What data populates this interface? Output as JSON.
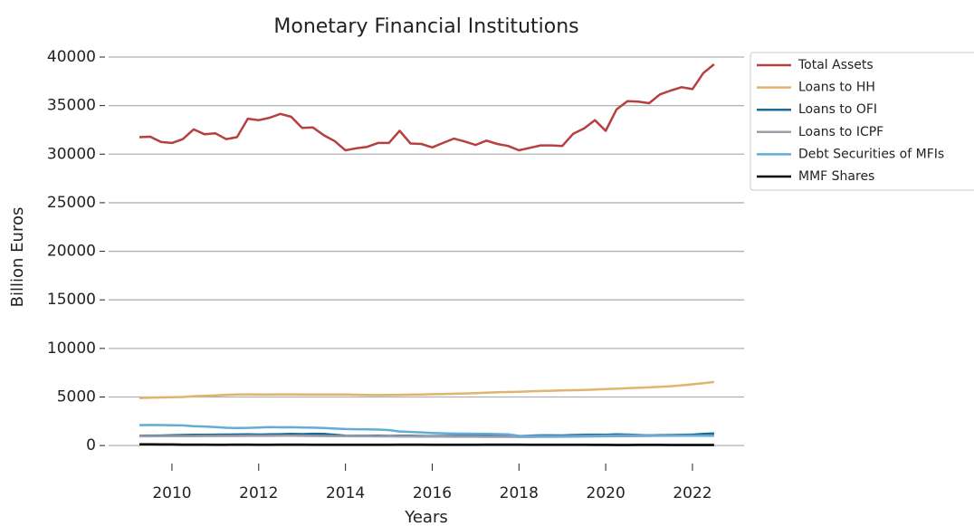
{
  "chart_data": {
    "type": "line",
    "title": "Monetary Financial Institutions",
    "x_label": "Years",
    "y_label": "Billion Euros",
    "x": [
      2009.25,
      2009.5,
      2009.75,
      2010,
      2010.25,
      2010.5,
      2010.75,
      2011,
      2011.25,
      2011.5,
      2011.75,
      2012,
      2012.25,
      2012.5,
      2012.75,
      2013,
      2013.25,
      2013.5,
      2013.75,
      2014,
      2014.25,
      2014.5,
      2014.75,
      2015,
      2015.25,
      2015.5,
      2015.75,
      2016,
      2016.25,
      2016.5,
      2016.75,
      2017,
      2017.25,
      2017.5,
      2017.75,
      2018,
      2018.25,
      2018.5,
      2018.75,
      2019,
      2019.25,
      2019.5,
      2019.75,
      2020,
      2020.25,
      2020.5,
      2020.75,
      2021,
      2021.25,
      2021.5,
      2021.75,
      2022,
      2022.25,
      2022.5
    ],
    "series": [
      {
        "name": "Total Assets",
        "color": "#b5403f",
        "values": [
          31750,
          31800,
          31250,
          31150,
          31550,
          32550,
          32050,
          32150,
          31550,
          31750,
          33650,
          33500,
          33750,
          34150,
          33850,
          32700,
          32750,
          31950,
          31350,
          30400,
          30600,
          30750,
          31150,
          31150,
          32400,
          31100,
          31050,
          30700,
          31150,
          31600,
          31300,
          30950,
          31400,
          31050,
          30850,
          30400,
          30650,
          30900,
          30900,
          30850,
          32100,
          32650,
          33500,
          32400,
          34600,
          35450,
          35400,
          35250,
          36150,
          36550,
          36900,
          36700,
          38350,
          39250
        ]
      },
      {
        "name": "Loans to HH",
        "color": "#e0b46e",
        "values": [
          4900,
          4920,
          4950,
          4970,
          5000,
          5080,
          5120,
          5170,
          5220,
          5260,
          5270,
          5260,
          5260,
          5270,
          5270,
          5260,
          5260,
          5260,
          5250,
          5250,
          5230,
          5210,
          5190,
          5200,
          5220,
          5240,
          5260,
          5290,
          5310,
          5330,
          5360,
          5400,
          5440,
          5480,
          5510,
          5540,
          5580,
          5610,
          5640,
          5670,
          5700,
          5730,
          5770,
          5810,
          5850,
          5900,
          5940,
          5990,
          6050,
          6110,
          6200,
          6300,
          6420,
          6550
        ]
      },
      {
        "name": "Loans to OFI",
        "color": "#1a6b96",
        "values": [
          1000,
          1020,
          1030,
          1060,
          1080,
          1110,
          1100,
          1120,
          1130,
          1140,
          1160,
          1130,
          1160,
          1170,
          1200,
          1180,
          1210,
          1200,
          1100,
          1020,
          1000,
          1000,
          1010,
          990,
          1000,
          1000,
          980,
          960,
          980,
          990,
          990,
          990,
          980,
          970,
          960,
          950,
          1010,
          1050,
          1050,
          1040,
          1080,
          1100,
          1120,
          1100,
          1150,
          1130,
          1080,
          1050,
          1080,
          1090,
          1100,
          1120,
          1200,
          1250
        ]
      },
      {
        "name": "Loans to ICPF",
        "color": "#a09ca8",
        "values": [
          950,
          950,
          960,
          960,
          970,
          970,
          980,
          980,
          990,
          990,
          1000,
          1000,
          1000,
          1010,
          1010,
          1000,
          990,
          980,
          970,
          960,
          950,
          950,
          940,
          940,
          930,
          930,
          920,
          920,
          920,
          910,
          910,
          910,
          900,
          900,
          900,
          890,
          890,
          900,
          900,
          910,
          920,
          930,
          940,
          950,
          960,
          970,
          980,
          990,
          1000,
          1000,
          1010,
          1010,
          1020,
          1020
        ]
      },
      {
        "name": "Debt Securities of MFIs",
        "color": "#63acd8",
        "values": [
          2100,
          2120,
          2110,
          2080,
          2070,
          2000,
          1960,
          1900,
          1830,
          1800,
          1820,
          1860,
          1900,
          1880,
          1890,
          1860,
          1840,
          1800,
          1750,
          1700,
          1680,
          1660,
          1640,
          1600,
          1450,
          1400,
          1350,
          1300,
          1260,
          1230,
          1220,
          1210,
          1200,
          1180,
          1150,
          1000,
          980,
          960,
          950,
          960,
          980,
          990,
          1000,
          1010,
          1030,
          1050,
          1040,
          1040,
          1050,
          1060,
          1040,
          1020,
          1010,
          1000
        ]
      },
      {
        "name": "MMF Shares",
        "color": "#000000",
        "values": [
          120,
          120,
          110,
          110,
          100,
          100,
          100,
          90,
          90,
          100,
          100,
          90,
          90,
          100,
          100,
          100,
          90,
          90,
          90,
          80,
          80,
          80,
          90,
          90,
          100,
          100,
          100,
          90,
          90,
          90,
          90,
          90,
          100,
          100,
          100,
          100,
          90,
          90,
          90,
          80,
          80,
          80,
          70,
          70,
          60,
          60,
          70,
          70,
          70,
          60,
          60,
          60,
          60,
          60
        ]
      }
    ],
    "xlim": [
      2008.54,
      2023.19
    ],
    "ylim": [
      -1200,
      40000
    ],
    "xticks": [
      2010,
      2012,
      2014,
      2016,
      2018,
      2020,
      2022
    ],
    "yticks": [
      0,
      5000,
      10000,
      15000,
      20000,
      25000,
      30000,
      35000,
      40000
    ],
    "grid": true,
    "legend": "outside upper right"
  }
}
